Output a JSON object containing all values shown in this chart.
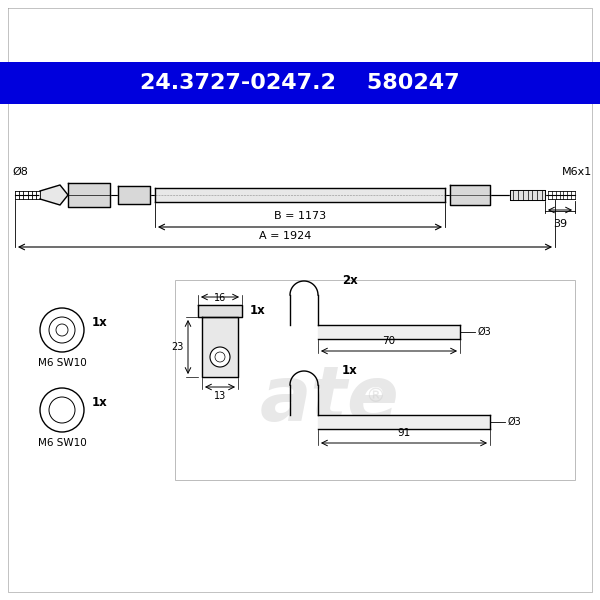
{
  "title_text": "24.3727-0247.2    580247",
  "title_bg_color": "#0000DD",
  "title_text_color": "#FFFFFF",
  "bg_color": "#FFFFFF",
  "line_color": "#000000",
  "border_color": "#888888",
  "figsize": [
    6.0,
    6.0
  ],
  "dpi": 100,
  "dim_B_label": "B = 1173",
  "dim_A_label": "A = 1924",
  "label_d8": "Ø8",
  "label_m6x1": "M6x1",
  "label_39": "39",
  "label_16": "16",
  "label_23": "23",
  "label_13": "13",
  "label_70": "70",
  "label_91": "91",
  "label_d3": "Ø3",
  "label_2x_clip": "2x",
  "label_1x_clip": "1x",
  "label_1x_block": "1x",
  "label_1x_nut1": "1x",
  "label_1x_nut2": "1x",
  "label_nut1": "M6 SW10",
  "label_nut2": "M6 SW10",
  "watermark": "ate"
}
